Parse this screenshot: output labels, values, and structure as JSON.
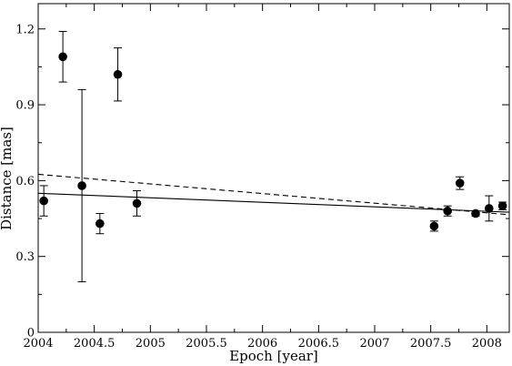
{
  "chart_data": {
    "type": "scatter",
    "title": "",
    "xlabel": "Epoch [year]",
    "ylabel": "Distance [mas]",
    "xlim": [
      2004,
      2008.2
    ],
    "ylim": [
      0,
      1.3
    ],
    "x_ticks": [
      2004,
      2004.5,
      2005,
      2005.5,
      2006,
      2006.5,
      2007,
      2007.5,
      2008
    ],
    "x_tick_labels": [
      "2004",
      "2004.5",
      "2005",
      "2005.5",
      "2006",
      "2006.5",
      "2007",
      "2007.5",
      "2008"
    ],
    "y_ticks": [
      0,
      0.3,
      0.6,
      0.9,
      1.2
    ],
    "y_tick_labels": [
      "0",
      "0.3",
      "0.6",
      "0.9",
      "1.2"
    ],
    "grid": false,
    "legend": "none",
    "series": [
      {
        "type": "scatter",
        "marker": "filled-circle",
        "color": "#000000",
        "points": [
          {
            "x": 2004.05,
            "y": 0.52,
            "err": 0.06
          },
          {
            "x": 2004.22,
            "y": 1.09,
            "err": 0.1
          },
          {
            "x": 2004.39,
            "y": 0.58,
            "err": 0.38
          },
          {
            "x": 2004.55,
            "y": 0.43,
            "err": 0.04
          },
          {
            "x": 2004.71,
            "y": 1.02,
            "err": 0.105
          },
          {
            "x": 2004.88,
            "y": 0.51,
            "err": 0.05
          },
          {
            "x": 2007.53,
            "y": 0.42,
            "err": 0.02
          },
          {
            "x": 2007.65,
            "y": 0.48,
            "err": 0.02
          },
          {
            "x": 2007.76,
            "y": 0.59,
            "err": 0.025
          },
          {
            "x": 2007.9,
            "y": 0.47,
            "err": 0.01
          },
          {
            "x": 2008.02,
            "y": 0.49,
            "err": 0.05
          },
          {
            "x": 2008.14,
            "y": 0.5,
            "err": 0.015
          }
        ]
      },
      {
        "type": "line",
        "style": "solid",
        "color": "#000000",
        "points": [
          {
            "x": 2004.0,
            "y": 0.55
          },
          {
            "x": 2008.2,
            "y": 0.475
          }
        ]
      },
      {
        "type": "line",
        "style": "dashed",
        "color": "#000000",
        "points": [
          {
            "x": 2004.0,
            "y": 0.625
          },
          {
            "x": 2008.2,
            "y": 0.465
          }
        ]
      }
    ]
  }
}
